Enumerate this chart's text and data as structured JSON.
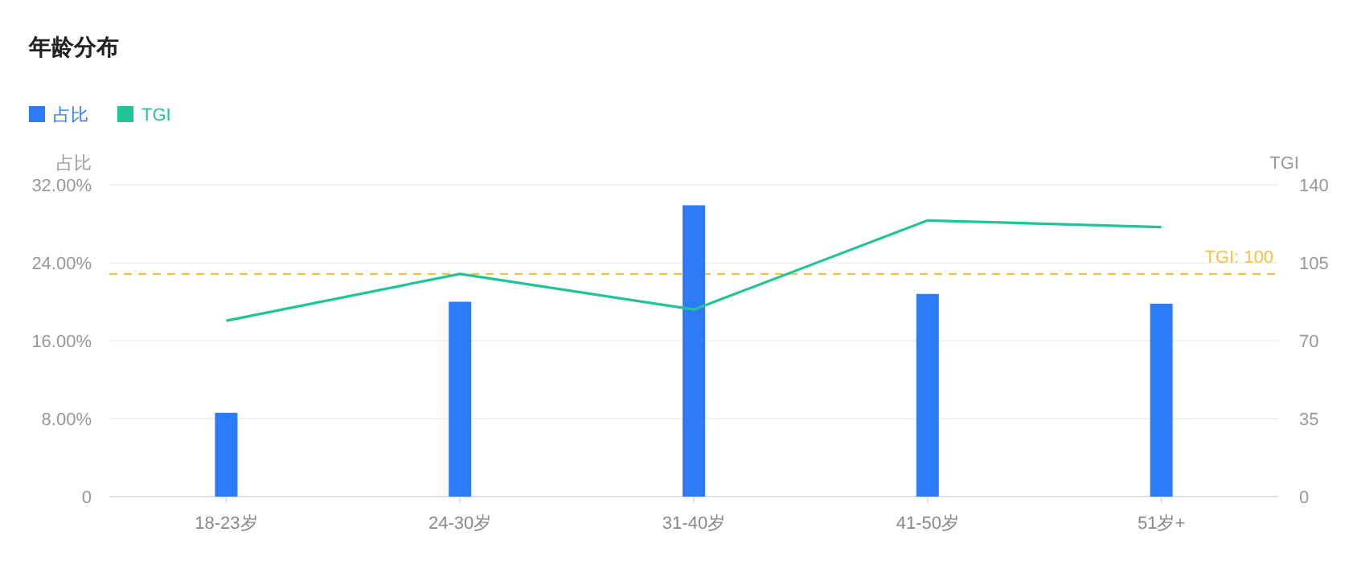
{
  "chart_data": {
    "type": "bar",
    "title": "年龄分布",
    "categories": [
      "18-23岁",
      "24-30岁",
      "31-40岁",
      "41-50岁",
      "51岁+"
    ],
    "series": [
      {
        "name": "占比",
        "color": "#2b7cf6",
        "values": [
          8.6,
          20.0,
          29.9,
          20.8,
          19.8
        ]
      },
      {
        "name": "TGI",
        "type": "line",
        "axis": "y2",
        "color": "#1fc596",
        "values": [
          79,
          100,
          84,
          124,
          121
        ]
      }
    ],
    "ylabel": "占比",
    "y2label": "TGI",
    "ylim": [
      0,
      32
    ],
    "yticks": [
      {
        "value": 0,
        "label": "0"
      },
      {
        "value": 8,
        "label": "8.00%"
      },
      {
        "value": 16,
        "label": "16.00%"
      },
      {
        "value": 24,
        "label": "24.00%"
      },
      {
        "value": 32,
        "label": "32.00%"
      }
    ],
    "y2lim": [
      0,
      140
    ],
    "y2ticks": [
      0,
      35,
      70,
      105,
      140
    ],
    "ref_lines": [
      {
        "axis": "y2",
        "value": 100,
        "label": "TGI: 100",
        "color": "#f5c342",
        "line_style": "dashed"
      }
    ],
    "grid": "y",
    "legend": "top left",
    "marker": "none",
    "line_style": "solid"
  }
}
